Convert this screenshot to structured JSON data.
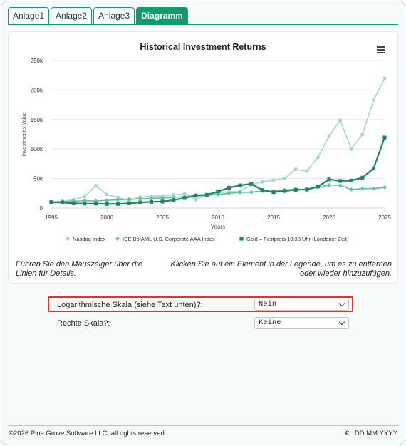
{
  "tabs": [
    {
      "label": "Anlage1",
      "active": false
    },
    {
      "label": "Anlage2",
      "active": false
    },
    {
      "label": "Anlage3",
      "active": false
    },
    {
      "label": "Diagramm",
      "active": true
    }
  ],
  "chart": {
    "menu_icon": "hamburger-menu-icon"
  },
  "chart_data": {
    "type": "line",
    "title": "Historical Investment Returns",
    "xlabel": "Years",
    "ylabel": "Investment's Value",
    "xlim": [
      1995,
      2025
    ],
    "ylim": [
      0,
      250000
    ],
    "x_ticks": [
      "1995",
      "2000",
      "2005",
      "2010",
      "2015",
      "2020",
      "2025"
    ],
    "y_ticks": [
      {
        "value": 0,
        "label": "0"
      },
      {
        "value": 50000,
        "label": "50k"
      },
      {
        "value": 100000,
        "label": "100k"
      },
      {
        "value": 150000,
        "label": "150k"
      },
      {
        "value": 200000,
        "label": "200k"
      },
      {
        "value": 250000,
        "label": "250k"
      }
    ],
    "grid": true,
    "legend_position": "bottom",
    "x": [
      1995,
      1996,
      1997,
      1998,
      1999,
      2000,
      2001,
      2002,
      2003,
      2004,
      2005,
      2006,
      2007,
      2008,
      2009,
      2010,
      2011,
      2012,
      2013,
      2014,
      2015,
      2016,
      2017,
      2018,
      2019,
      2020,
      2021,
      2022,
      2023,
      2024,
      2025
    ],
    "series": [
      {
        "name": "Nasdaq Index",
        "color": "#a6d8c2",
        "marker": "circle",
        "values": [
          10000,
          11500,
          14000,
          19500,
          38000,
          23000,
          18000,
          12500,
          18500,
          20000,
          20500,
          22000,
          24500,
          14500,
          22000,
          25500,
          27500,
          28000,
          39500,
          44500,
          47000,
          50500,
          65500,
          62500,
          86000,
          122000,
          149000,
          100000,
          125000,
          183000,
          220000
        ]
      },
      {
        "name": "ICE BofAML U.S. Corporate AAA Index",
        "color": "#5cc49a",
        "marker": "diamond",
        "values": [
          10000,
          10500,
          11500,
          12500,
          12000,
          13000,
          14000,
          15000,
          15500,
          16500,
          17000,
          18000,
          19500,
          20500,
          21500,
          23000,
          25000,
          26500,
          27000,
          29000,
          28500,
          30500,
          32000,
          31000,
          35500,
          39000,
          38500,
          31500,
          33000,
          33000,
          35000
        ]
      },
      {
        "name": "Gold – Festpreis 10:30 Uhr (Londoner Zeit)",
        "color": "#1a8a5c",
        "marker": "square",
        "values": [
          10000,
          9500,
          8000,
          7500,
          7500,
          7000,
          7000,
          8000,
          9500,
          10500,
          11000,
          13500,
          17000,
          21500,
          22500,
          28000,
          34500,
          38500,
          41000,
          30500,
          27000,
          29000,
          31000,
          31500,
          36500,
          48500,
          46000,
          46500,
          51500,
          67000,
          119500
        ]
      }
    ]
  },
  "hints": {
    "left": "Führen Sie den Mauszeiger über die Linien für Details.",
    "right": "Klicken Sie auf ein Element in der Legende, um es zu entfernen oder wieder hinzuzufügen."
  },
  "settings": {
    "log_scale_label": "Logarithmische Skala (siehe Text unten)?:",
    "log_scale_value": "Nein",
    "right_scale_label": "Rechte Skala?:",
    "right_scale_value": "Keine"
  },
  "footer": {
    "copyright": "©2026 Pine Grove Software LLC, all rights reserved",
    "date_format": "€ : DD.MM.YYYY"
  }
}
